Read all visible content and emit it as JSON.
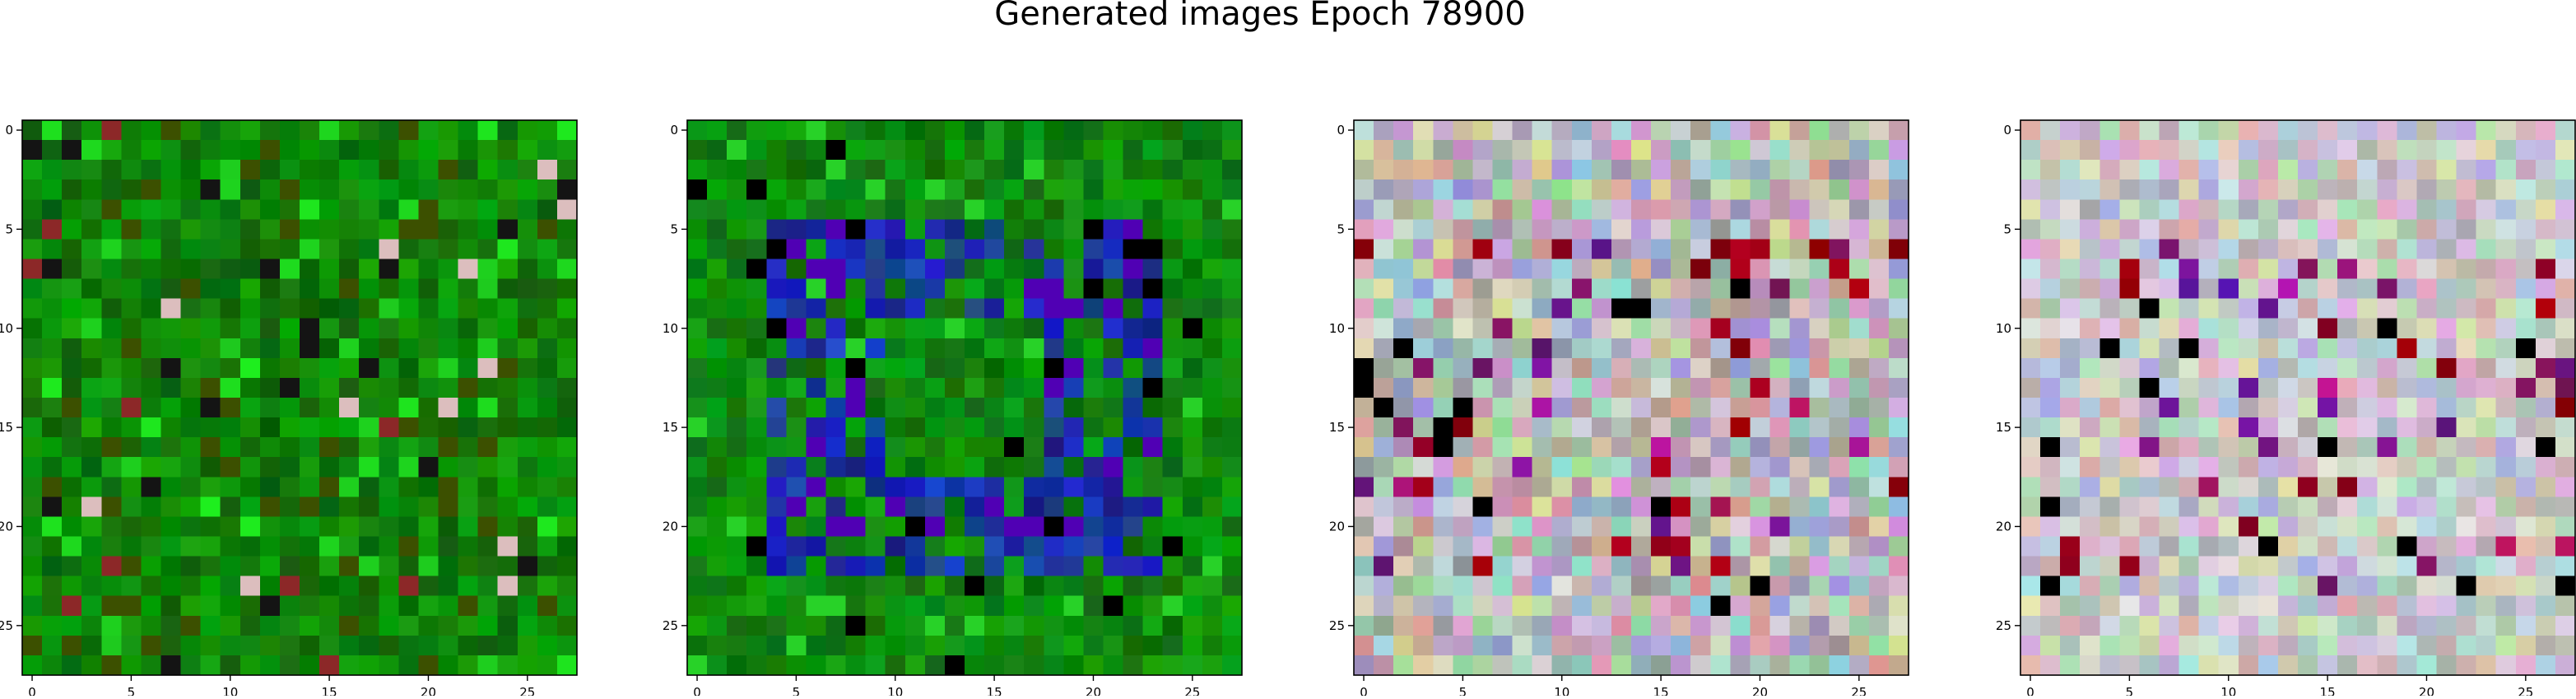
{
  "chart_data": {
    "suptitle": "Generated images Epoch 78900",
    "type": "heatmap",
    "shared_axes": {
      "x_ticks": [
        0,
        5,
        10,
        15,
        20,
        25
      ],
      "y_ticks": [
        0,
        5,
        10,
        15,
        20,
        25
      ],
      "grid_size": 28,
      "xlim": [
        -0.5,
        27.5
      ],
      "ylim": [
        27.5,
        -0.5
      ],
      "grid": false
    },
    "panels": [
      {
        "palette": "green-noise",
        "description_colors": {
          "base": "#0a7a0a",
          "accents": [
            "#00c000",
            "#3a5a00",
            "#0a3a0a",
            "#8a2a2a",
            "#e0c0c0"
          ]
        }
      },
      {
        "palette": "green-with-blue-ring",
        "description_colors": {
          "base": "#0a7a0a",
          "accents": [
            "#0000a0",
            "#5000c0",
            "#000000",
            "#20c020"
          ]
        }
      },
      {
        "palette": "pastel-noise",
        "description_colors": {
          "base": "#c8c0c8",
          "accents": [
            "#e0a0d0",
            "#a0e0a0",
            "#a0a0e0",
            "#800000",
            "#000000"
          ]
        }
      },
      {
        "palette": "pastel-noise-pale",
        "description_colors": {
          "base": "#d0c8c8",
          "accents": [
            "#e0b0d0",
            "#c0e0b0",
            "#b0b0e0",
            "#600000",
            "#000000"
          ]
        }
      }
    ]
  }
}
